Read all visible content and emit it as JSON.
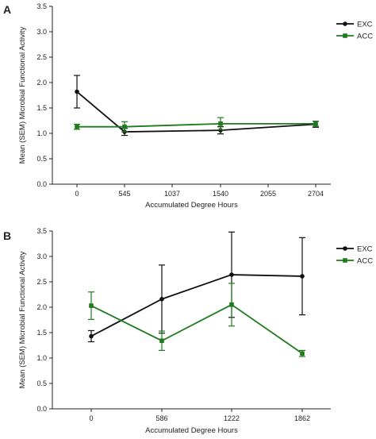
{
  "chart_data": [
    {
      "panel_label": "A",
      "type": "line",
      "xlabel": "Accumulated Degree Hours",
      "ylabel": "Mean (SEM) Microbial Functional Activity",
      "x_ticks": [
        "0",
        "545",
        "1037",
        "1540",
        "2055",
        "2704"
      ],
      "ylim": [
        0,
        3.5
      ],
      "y_ticks": [
        "0.0",
        "0.5",
        "1.0",
        "1.5",
        "2.0",
        "2.5",
        "3.0",
        "3.5"
      ],
      "grid": false,
      "legend_position": "top-right",
      "series": [
        {
          "name": "EXC",
          "color": "#111111",
          "marker": "circle",
          "points": [
            {
              "x": "0",
              "y": 1.82,
              "err": 0.32
            },
            {
              "x": "545",
              "y": 1.03,
              "err": 0.07
            },
            {
              "x": "1540",
              "y": 1.06,
              "err": 0.07
            },
            {
              "x": "2704",
              "y": 1.18,
              "err": 0.06
            }
          ]
        },
        {
          "name": "ACC",
          "color": "#1e7b1e",
          "marker": "square",
          "points": [
            {
              "x": "0",
              "y": 1.13,
              "err": 0.05
            },
            {
              "x": "545",
              "y": 1.13,
              "err": 0.1
            },
            {
              "x": "1540",
              "y": 1.19,
              "err": 0.12
            },
            {
              "x": "2704",
              "y": 1.19,
              "err": 0.05
            }
          ]
        }
      ]
    },
    {
      "panel_label": "B",
      "type": "line",
      "xlabel": "Accumulated Degree Hours",
      "ylabel": "Mean (SEM) Microbial Functional Activity",
      "x_ticks": [
        "0",
        "586",
        "1222",
        "1862"
      ],
      "ylim": [
        0,
        3.5
      ],
      "y_ticks": [
        "0.0",
        "0.5",
        "1.0",
        "1.5",
        "2.0",
        "2.5",
        "3.0",
        "3.5"
      ],
      "grid": false,
      "legend_position": "top-right",
      "series": [
        {
          "name": "EXC",
          "color": "#111111",
          "marker": "circle",
          "points": [
            {
              "x": "0",
              "y": 1.43,
              "err": 0.11
            },
            {
              "x": "586",
              "y": 2.16,
              "err": 0.67
            },
            {
              "x": "1222",
              "y": 2.64,
              "err": 0.84
            },
            {
              "x": "1862",
              "y": 2.61,
              "err": 0.76
            }
          ]
        },
        {
          "name": "ACC",
          "color": "#1e7b1e",
          "marker": "square",
          "points": [
            {
              "x": "0",
              "y": 2.03,
              "err": 0.27
            },
            {
              "x": "586",
              "y": 1.34,
              "err": 0.19
            },
            {
              "x": "1222",
              "y": 2.05,
              "err": 0.42
            },
            {
              "x": "1862",
              "y": 1.09,
              "err": 0.06
            }
          ]
        }
      ]
    }
  ]
}
